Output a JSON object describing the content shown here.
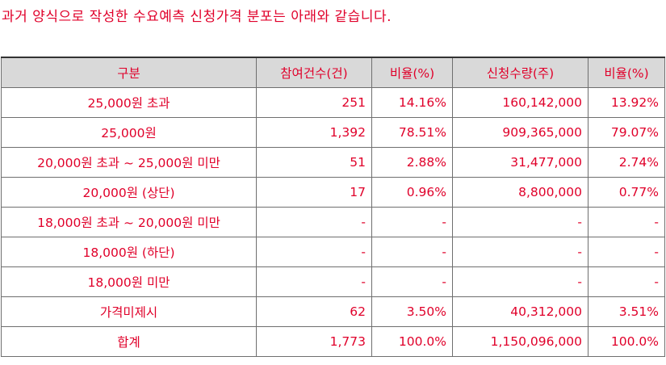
{
  "caption": "과거 양식으로 작성한 수요예측 신청가격 분포는 아래와 같습니다.",
  "table": {
    "headers": [
      "구분",
      "참여건수(건)",
      "비율(%)",
      "신청수량(주)",
      "비율(%)"
    ],
    "rows": [
      {
        "category": "25,000원 초과",
        "count": "251",
        "count_ratio": "14.16%",
        "quantity": "160,142,000",
        "quantity_ratio": "13.92%"
      },
      {
        "category": "25,000원",
        "count": "1,392",
        "count_ratio": "78.51%",
        "quantity": "909,365,000",
        "quantity_ratio": "79.07%"
      },
      {
        "category": "20,000원 초과 ~ 25,000원 미만",
        "count": "51",
        "count_ratio": "2.88%",
        "quantity": "31,477,000",
        "quantity_ratio": "2.74%"
      },
      {
        "category": "20,000원 (상단)",
        "count": "17",
        "count_ratio": "0.96%",
        "quantity": "8,800,000",
        "quantity_ratio": "0.77%"
      },
      {
        "category": "18,000원 초과 ~ 20,000원 미만",
        "count": "-",
        "count_ratio": "-",
        "quantity": "-",
        "quantity_ratio": "-"
      },
      {
        "category": "18,000원 (하단)",
        "count": "-",
        "count_ratio": "-",
        "quantity": "-",
        "quantity_ratio": "-"
      },
      {
        "category": "18,000원 미만",
        "count": "-",
        "count_ratio": "-",
        "quantity": "-",
        "quantity_ratio": "-"
      },
      {
        "category": "가격미제시",
        "count": "62",
        "count_ratio": "3.50%",
        "quantity": "40,312,000",
        "quantity_ratio": "3.51%"
      },
      {
        "category": "합계",
        "count": "1,773",
        "count_ratio": "100.0%",
        "quantity": "1,150,096,000",
        "quantity_ratio": "100.0%"
      }
    ]
  },
  "colors": {
    "text": "#e0002a",
    "header_bg": "#d9d9d9",
    "border": "#6f6f6f"
  }
}
